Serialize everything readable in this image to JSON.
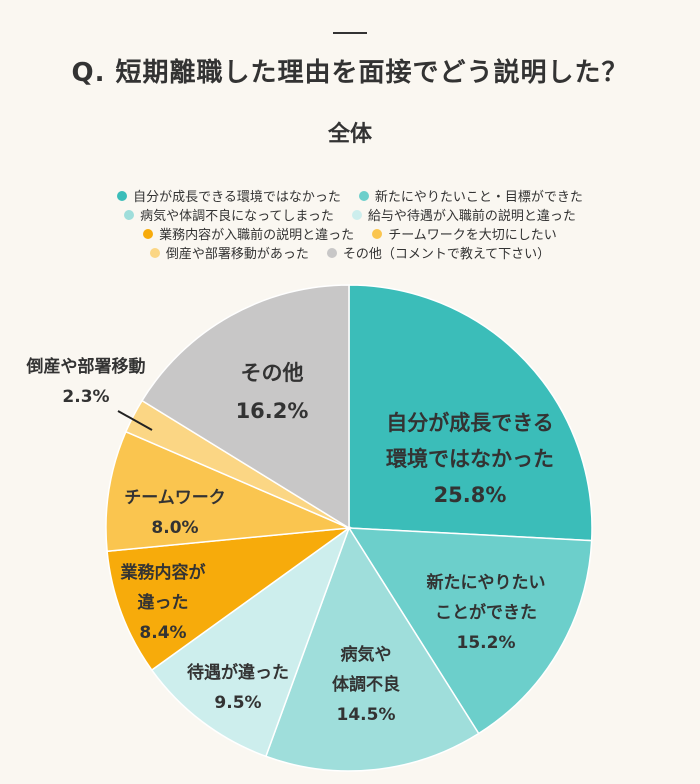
{
  "header": {
    "title": "Q. 短期離職した理由を面接でどう説明した？",
    "subtitle": "全体"
  },
  "legend": {
    "rows": [
      [
        {
          "label": "自分が成長できる環境ではなかった",
          "color": "#3bbdb9"
        },
        {
          "label": "新たにやりたいこと・目標ができた",
          "color": "#6ccfcb"
        }
      ],
      [
        {
          "label": "病気や体調不良になってしまった",
          "color": "#9fdedb"
        },
        {
          "label": "給与や待遇が入職前の説明と違った",
          "color": "#cdeeed"
        }
      ],
      [
        {
          "label": "業務内容が入職前の説明と違った",
          "color": "#f7ab0b"
        },
        {
          "label": "チームワークを大切にしたい",
          "color": "#fac54f"
        }
      ],
      [
        {
          "label": "倒産や部署移動があった",
          "color": "#fbd684"
        },
        {
          "label": "その他（コメントで教えて下さい）",
          "color": "#c8c7c7"
        }
      ]
    ]
  },
  "slices": [
    {
      "line1": "自分が成長できる",
      "line2": "環境ではなかった",
      "pct": "25.8%"
    },
    {
      "line1": "新たにやりたい",
      "line2": "ことができた",
      "pct": "15.2%"
    },
    {
      "line1": "病気や",
      "line2": "体調不良",
      "pct": "14.5%"
    },
    {
      "line1": "待遇が違った",
      "line2": "",
      "pct": "9.5%"
    },
    {
      "line1": "業務内容が",
      "line2": "違った",
      "pct": "8.4%"
    },
    {
      "line1": "チームワーク",
      "line2": "",
      "pct": "8.0%"
    },
    {
      "line1": "倒産や部署移動",
      "line2": "",
      "pct": "2.3%"
    },
    {
      "line1": "その他",
      "line2": "",
      "pct": "16.2%"
    }
  ],
  "chart_data": {
    "type": "pie",
    "title": "Q. 短期離職した理由を面接でどう説明した？",
    "subtitle": "全体",
    "categories": [
      "自分が成長できる環境ではなかった",
      "新たにやりたいこと・目標ができた",
      "病気や体調不良になってしまった",
      "給与や待遇が入職前の説明と違った",
      "業務内容が入職前の説明と違った",
      "チームワークを大切にしたい",
      "倒産や部署移動があった",
      "その他（コメントで教えて下さい）"
    ],
    "values": [
      25.8,
      15.2,
      14.5,
      9.5,
      8.4,
      8.0,
      2.3,
      16.2
    ],
    "colors": [
      "#3bbdb9",
      "#6ccfcb",
      "#9fdedb",
      "#cdeeed",
      "#f7ab0b",
      "#fac54f",
      "#fbd684",
      "#c8c7c7"
    ],
    "unit": "%",
    "start_angle": "12 o'clock, clockwise",
    "legend_position": "top"
  }
}
